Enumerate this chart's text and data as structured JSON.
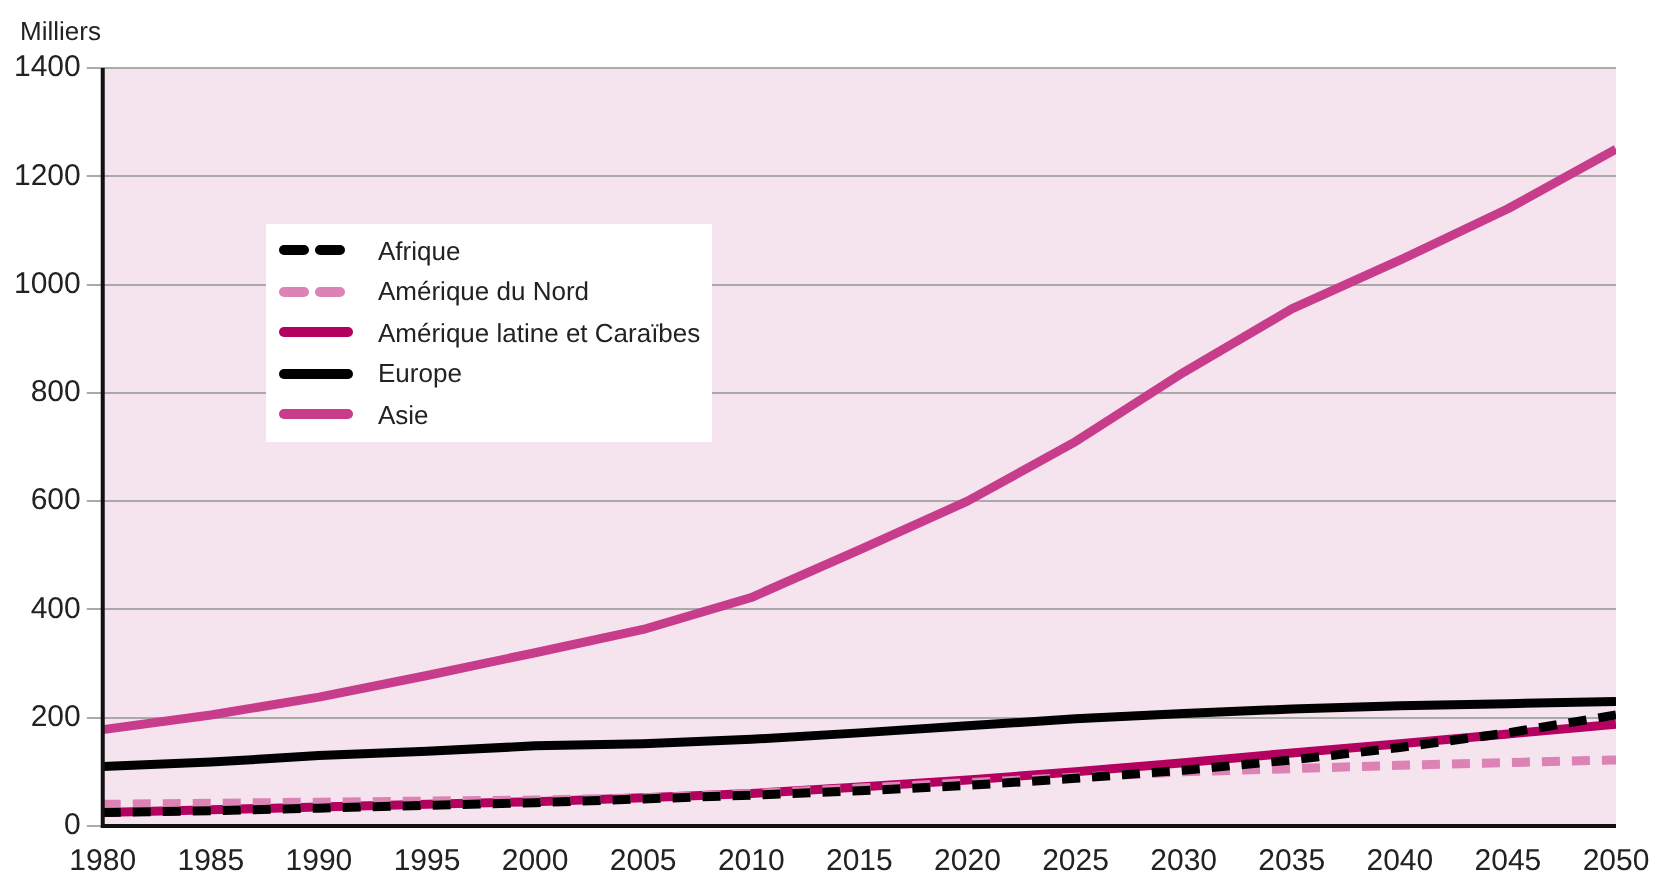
{
  "chart_data": {
    "type": "line",
    "ylabel": "Milliers",
    "x": [
      1980,
      1985,
      1990,
      1995,
      2000,
      2005,
      2010,
      2015,
      2020,
      2025,
      2030,
      2035,
      2040,
      2045,
      2050
    ],
    "xlim": [
      1980,
      2050
    ],
    "xticks": [
      1980,
      1985,
      1990,
      1995,
      2000,
      2005,
      2010,
      2015,
      2020,
      2025,
      2030,
      2035,
      2040,
      2045,
      2050
    ],
    "ylim": [
      0,
      1400
    ],
    "yticks": [
      0,
      200,
      400,
      600,
      800,
      1000,
      1200,
      1400
    ],
    "grid": "y",
    "legend": "top left",
    "marker": "none",
    "series": [
      {
        "name": "Afrique",
        "color": "#000000",
        "line_style": "dashed",
        "values": [
          25,
          28,
          33,
          38,
          43,
          50,
          57,
          65,
          75,
          88,
          103,
          122,
          145,
          172,
          205
        ]
      },
      {
        "name": "Amérique du Nord",
        "color": "#dc82b4",
        "line_style": "dashed",
        "values": [
          40,
          42,
          44,
          46,
          48,
          52,
          60,
          70,
          80,
          90,
          100,
          106,
          112,
          117,
          122
        ]
      },
      {
        "name": "Amérique latine et Caraïbes",
        "color": "#b4005f",
        "line_style": "solid",
        "values": [
          25,
          30,
          35,
          40,
          45,
          52,
          60,
          72,
          85,
          100,
          117,
          135,
          152,
          170,
          188
        ]
      },
      {
        "name": "Europe",
        "color": "#000000",
        "line_style": "solid",
        "values": [
          110,
          118,
          130,
          138,
          148,
          152,
          160,
          172,
          185,
          198,
          208,
          216,
          222,
          226,
          230
        ]
      },
      {
        "name": "Asie",
        "color": "#c83c8c",
        "line_style": "solid",
        "values": [
          178,
          205,
          238,
          278,
          320,
          363,
          422,
          510,
          600,
          710,
          838,
          955,
          1045,
          1140,
          1250
        ]
      }
    ]
  }
}
